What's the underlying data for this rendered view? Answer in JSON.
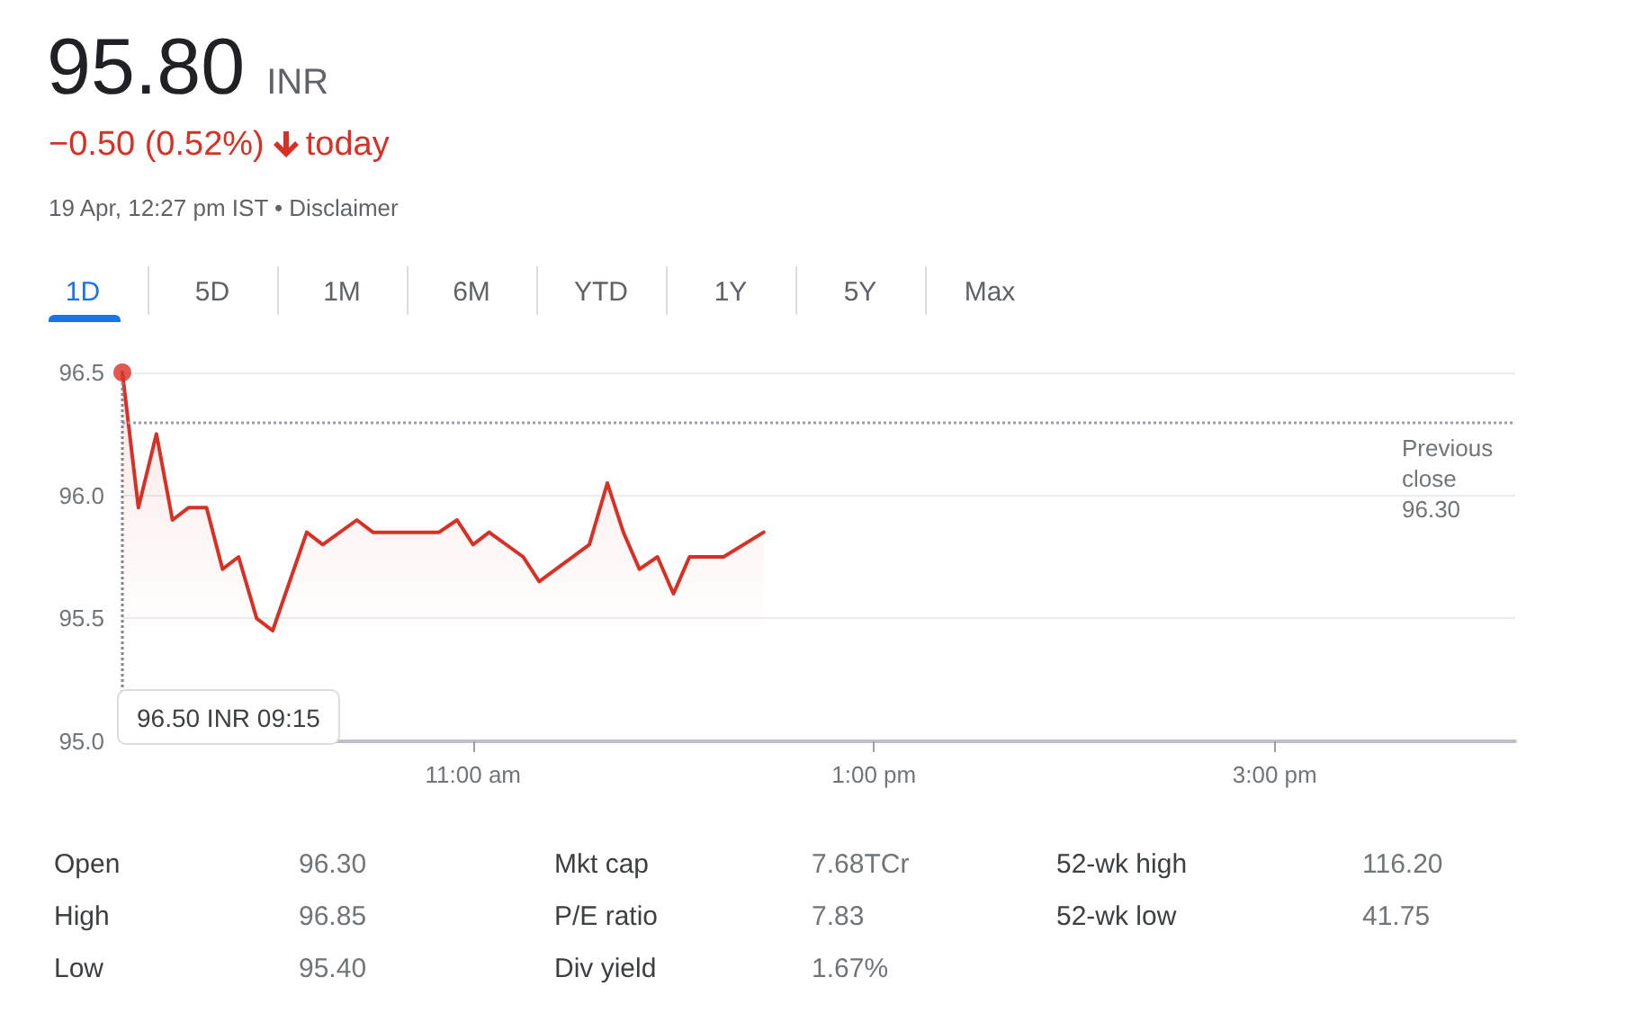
{
  "chart_data": {
    "type": "area",
    "title": "95.80",
    "annotations": [
      "INR",
      "−0.50 (0.52%)",
      "today",
      "19 Apr, 12:27 pm IST • Disclaimer",
      "1D",
      "5D",
      "1M",
      "6M",
      "YTD",
      "1Y",
      "5Y",
      "Max",
      "Open",
      "96.30",
      "Mkt cap",
      "7.68TCr",
      "52-wk high",
      "116.20",
      "High",
      "96.85",
      "P/E ratio",
      "7.83",
      "52-wk low",
      "41.75",
      "Low",
      "95.40",
      "Div yield",
      "1.67%"
    ],
    "x": [
      9.25,
      9.33,
      9.42,
      9.5,
      9.58,
      9.67,
      9.75,
      9.83,
      9.92,
      10.0,
      10.17,
      10.25,
      10.42,
      10.5,
      10.83,
      10.92,
      11.0,
      11.08,
      11.25,
      11.33,
      11.58,
      11.67,
      11.75,
      11.83,
      11.92,
      12.0,
      12.08,
      12.25,
      12.45
    ],
    "series": [
      {
        "color": "#d93025",
        "values": [
          96.5,
          95.95,
          96.25,
          95.9,
          95.95,
          95.95,
          95.7,
          95.75,
          95.5,
          95.45,
          95.85,
          95.8,
          95.9,
          95.85,
          95.85,
          95.9,
          95.8,
          95.85,
          95.75,
          95.65,
          95.8,
          96.05,
          95.85,
          95.7,
          95.75,
          95.6,
          95.75,
          95.75,
          95.85
        ]
      },
      {
        "type": "scatter",
        "color": "#d93025",
        "x": [
          9.25
        ],
        "values": [
          96.5
        ],
        "marker": "circle"
      }
    ],
    "xlim": [
      9.25,
      16.2
    ],
    "xticks": [
      {
        "value": 11,
        "label": "11:00 am"
      },
      {
        "value": 13,
        "label": "1:00 pm"
      },
      {
        "value": 15,
        "label": "3:00 pm"
      }
    ],
    "ylim": [
      95,
      96.5
    ],
    "yticks": [
      {
        "value": 95,
        "label": "95.0"
      },
      95.5,
      {
        "value": 96,
        "label": "96.0"
      },
      96.5
    ],
    "grid": "y",
    "marker": "none",
    "line_style": "solid",
    "ref_lines": [
      {
        "axis": "y",
        "value": 96.3,
        "label": "Previous close 96.30",
        "color": "#9aa0a6",
        "line_style": "dotted"
      },
      {
        "axis": "x",
        "value": 9.25,
        "label": "96.50 INR 09:15",
        "color": "#80868b",
        "line_style": "dotted"
      }
    ]
  }
}
